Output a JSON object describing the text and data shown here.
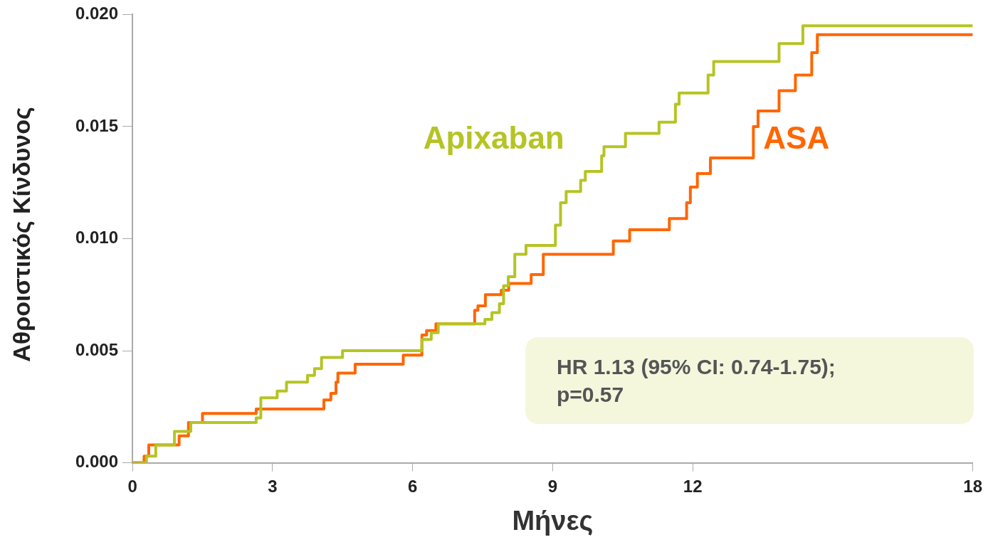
{
  "chart_data": {
    "type": "step",
    "xlabel": "Μήνες",
    "ylabel": "Αθροιστικός Κίνδυνος",
    "xlim": [
      0,
      18
    ],
    "xticks": [
      0,
      3,
      6,
      9,
      12,
      18
    ],
    "ylim": [
      0,
      0.02
    ],
    "yticks": [
      {
        "value": 0,
        "label": "0.000"
      },
      {
        "value": 0.005,
        "label": "0.005"
      },
      {
        "value": 0.01,
        "label": "0.010"
      },
      {
        "value": 0.015,
        "label": "0.015"
      },
      {
        "value": 0.02,
        "label": "0.020"
      }
    ],
    "grid": false,
    "legend": false,
    "marker": "none",
    "line_style": "solid",
    "annotations": [
      "HR 1.13 (95% CI: 0.74-1.75); p=0.57"
    ],
    "series": [
      {
        "name": "Apixaban",
        "color": "#b5c424",
        "x": [
          0,
          0.3,
          0.5,
          0.9,
          1.25,
          2.65,
          2.75,
          3.1,
          3.3,
          3.75,
          3.9,
          4.05,
          4.5,
          6.2,
          6.4,
          6.55,
          7.55,
          7.7,
          7.86,
          7.95,
          8.05,
          8.19,
          8.43,
          9.06,
          9.17,
          9.29,
          9.6,
          9.7,
          10.05,
          10.1,
          10.56,
          11.28,
          11.63,
          11.71,
          12.33,
          12.45,
          13.85,
          14.36,
          18
        ],
        "values": [
          0,
          0.0003,
          0.0008,
          0.0014,
          0.0018,
          0.002,
          0.0029,
          0.0032,
          0.0036,
          0.0039,
          0.0042,
          0.0047,
          0.005,
          0.0055,
          0.0058,
          0.0062,
          0.0064,
          0.0067,
          0.0071,
          0.0079,
          0.0083,
          0.0093,
          0.0097,
          0.0106,
          0.0116,
          0.0121,
          0.0126,
          0.013,
          0.0137,
          0.0141,
          0.0147,
          0.0152,
          0.016,
          0.0165,
          0.0173,
          0.0179,
          0.0187,
          0.0195,
          0.0195
        ]
      },
      {
        "name": "ASA",
        "color": "#ff6600",
        "x": [
          0,
          0.25,
          0.35,
          1.0,
          1.2,
          1.5,
          2.65,
          4.1,
          4.25,
          4.36,
          4.4,
          4.77,
          5.8,
          6.2,
          6.3,
          6.5,
          7.33,
          7.4,
          7.56,
          7.9,
          8.06,
          8.54,
          8.8,
          10.3,
          10.65,
          11.5,
          11.87,
          11.95,
          12.1,
          12.38,
          13.3,
          13.4,
          13.85,
          14.2,
          14.55,
          14.67,
          18
        ],
        "values": [
          0,
          0.0003,
          0.0008,
          0.0012,
          0.0018,
          0.0022,
          0.0024,
          0.0028,
          0.0031,
          0.0036,
          0.004,
          0.0044,
          0.0048,
          0.0057,
          0.0059,
          0.0062,
          0.0068,
          0.007,
          0.0075,
          0.0077,
          0.008,
          0.0084,
          0.0093,
          0.0099,
          0.0104,
          0.0109,
          0.0116,
          0.0123,
          0.0129,
          0.0136,
          0.015,
          0.0157,
          0.0166,
          0.0173,
          0.0183,
          0.0191,
          0.0191
        ]
      }
    ]
  }
}
